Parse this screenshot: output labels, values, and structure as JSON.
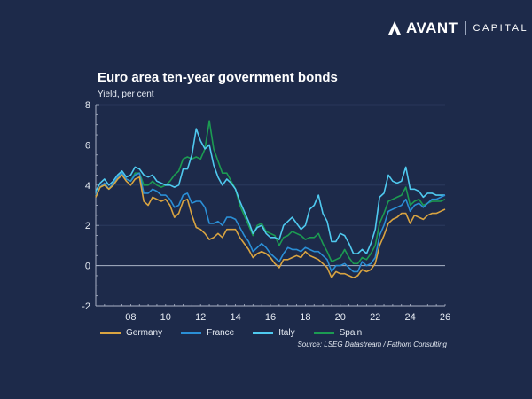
{
  "brand": {
    "name": "AVANT",
    "suffix": "CAPITAL"
  },
  "chart_data": {
    "type": "line",
    "title": "Euro area ten-year government bonds",
    "ylabel": "Yield, per cent",
    "xlabel": "",
    "ylim": [
      -2,
      8
    ],
    "xlim": [
      2006,
      2026
    ],
    "yticks": [
      8,
      6,
      4,
      2,
      0,
      -2
    ],
    "xticks": [
      {
        "value": 2008,
        "label": "08"
      },
      {
        "value": 2010,
        "label": "10"
      },
      {
        "value": 2012,
        "label": "12"
      },
      {
        "value": 2014,
        "label": "14"
      },
      {
        "value": 2016,
        "label": "16"
      },
      {
        "value": 2018,
        "label": "18"
      },
      {
        "value": 2020,
        "label": "20"
      },
      {
        "value": 2022,
        "label": "22"
      },
      {
        "value": 2024,
        "label": "24"
      },
      {
        "value": 2026,
        "label": "26"
      }
    ],
    "grid": true,
    "legend_position": "bottom",
    "source": "Source: LSEG Datastream / Fathom Consulting",
    "x": [
      2006.0,
      2006.25,
      2006.5,
      2006.75,
      2007.0,
      2007.25,
      2007.5,
      2007.75,
      2008.0,
      2008.25,
      2008.5,
      2008.75,
      2009.0,
      2009.25,
      2009.5,
      2009.75,
      2010.0,
      2010.25,
      2010.5,
      2010.75,
      2011.0,
      2011.25,
      2011.5,
      2011.75,
      2012.0,
      2012.25,
      2012.5,
      2012.75,
      2013.0,
      2013.25,
      2013.5,
      2013.75,
      2014.0,
      2014.25,
      2014.5,
      2014.75,
      2015.0,
      2015.25,
      2015.5,
      2015.75,
      2016.0,
      2016.25,
      2016.5,
      2016.75,
      2017.0,
      2017.25,
      2017.5,
      2017.75,
      2018.0,
      2018.25,
      2018.5,
      2018.75,
      2019.0,
      2019.25,
      2019.5,
      2019.75,
      2020.0,
      2020.25,
      2020.5,
      2020.75,
      2021.0,
      2021.25,
      2021.5,
      2021.75,
      2022.0,
      2022.25,
      2022.5,
      2022.75,
      2023.0,
      2023.25,
      2023.5,
      2023.75,
      2024.0,
      2024.25,
      2024.5,
      2024.75,
      2025.0,
      2025.25,
      2025.5,
      2025.75,
      2026.0
    ],
    "series": [
      {
        "name": "Germany",
        "color": "#d9a441",
        "values": [
          3.4,
          3.9,
          4.0,
          3.8,
          4.0,
          4.3,
          4.5,
          4.2,
          4.0,
          4.3,
          4.4,
          3.2,
          3.0,
          3.4,
          3.3,
          3.2,
          3.3,
          3.0,
          2.4,
          2.6,
          3.2,
          3.3,
          2.5,
          1.9,
          1.8,
          1.6,
          1.3,
          1.4,
          1.6,
          1.4,
          1.8,
          1.8,
          1.8,
          1.4,
          1.1,
          0.8,
          0.4,
          0.6,
          0.7,
          0.6,
          0.4,
          0.1,
          -0.1,
          0.3,
          0.3,
          0.4,
          0.5,
          0.4,
          0.7,
          0.5,
          0.4,
          0.3,
          0.1,
          -0.1,
          -0.6,
          -0.3,
          -0.4,
          -0.4,
          -0.5,
          -0.6,
          -0.5,
          -0.2,
          -0.3,
          -0.2,
          0.1,
          1.0,
          1.5,
          2.1,
          2.3,
          2.4,
          2.6,
          2.6,
          2.1,
          2.5,
          2.4,
          2.3,
          2.5,
          2.6,
          2.6,
          2.7,
          2.8
        ]
      },
      {
        "name": "France",
        "color": "#2b8fd6",
        "values": [
          3.5,
          3.9,
          4.1,
          3.8,
          4.1,
          4.4,
          4.6,
          4.3,
          4.2,
          4.5,
          4.6,
          3.6,
          3.6,
          3.8,
          3.7,
          3.5,
          3.5,
          3.3,
          2.9,
          3.0,
          3.5,
          3.6,
          3.1,
          3.2,
          3.2,
          2.9,
          2.1,
          2.1,
          2.2,
          2.0,
          2.4,
          2.4,
          2.3,
          1.9,
          1.5,
          1.2,
          0.7,
          0.9,
          1.1,
          0.9,
          0.6,
          0.4,
          0.2,
          0.6,
          0.9,
          0.8,
          0.8,
          0.7,
          0.9,
          0.8,
          0.7,
          0.7,
          0.5,
          0.3,
          -0.3,
          0.0,
          0.0,
          0.1,
          -0.1,
          -0.3,
          -0.3,
          0.2,
          0.0,
          0.1,
          0.4,
          1.5,
          2.0,
          2.7,
          2.8,
          2.9,
          3.0,
          3.3,
          2.7,
          3.0,
          3.1,
          2.9,
          3.1,
          3.3,
          3.3,
          3.4,
          3.5
        ]
      },
      {
        "name": "Italy",
        "color": "#4fc9ef",
        "values": [
          3.7,
          4.1,
          4.3,
          4.0,
          4.2,
          4.5,
          4.7,
          4.4,
          4.5,
          4.9,
          4.8,
          4.5,
          4.4,
          4.5,
          4.2,
          4.1,
          4.0,
          4.0,
          3.9,
          4.0,
          4.8,
          4.8,
          5.5,
          6.8,
          6.2,
          5.8,
          6.0,
          5.0,
          4.4,
          4.0,
          4.3,
          4.1,
          3.8,
          3.2,
          2.7,
          2.2,
          1.6,
          1.9,
          2.0,
          1.6,
          1.4,
          1.4,
          1.3,
          2.0,
          2.2,
          2.4,
          2.1,
          1.8,
          2.0,
          2.8,
          3.0,
          3.5,
          2.6,
          2.2,
          1.2,
          1.2,
          1.6,
          1.5,
          1.1,
          0.6,
          0.6,
          0.8,
          0.6,
          1.1,
          1.8,
          3.4,
          3.6,
          4.5,
          4.2,
          4.1,
          4.2,
          4.9,
          3.8,
          3.8,
          3.7,
          3.4,
          3.6,
          3.6,
          3.5,
          3.5,
          3.5
        ]
      },
      {
        "name": "Spain",
        "color": "#1c9b52",
        "values": [
          3.5,
          3.9,
          4.0,
          3.8,
          4.0,
          4.3,
          4.5,
          4.3,
          4.2,
          4.6,
          4.6,
          4.0,
          4.0,
          4.2,
          4.0,
          3.9,
          4.0,
          4.2,
          4.5,
          4.7,
          5.3,
          5.4,
          5.3,
          5.4,
          5.3,
          5.8,
          7.2,
          5.8,
          5.2,
          4.6,
          4.6,
          4.2,
          3.8,
          3.0,
          2.5,
          2.0,
          1.5,
          2.0,
          2.1,
          1.7,
          1.6,
          1.5,
          1.0,
          1.4,
          1.5,
          1.7,
          1.6,
          1.5,
          1.3,
          1.4,
          1.4,
          1.6,
          1.1,
          0.7,
          0.2,
          0.3,
          0.4,
          0.8,
          0.4,
          0.1,
          0.1,
          0.4,
          0.3,
          0.6,
          1.0,
          2.1,
          2.6,
          3.2,
          3.3,
          3.4,
          3.5,
          3.9,
          3.0,
          3.2,
          3.3,
          3.0,
          3.1,
          3.2,
          3.2,
          3.2,
          3.3
        ]
      }
    ]
  }
}
